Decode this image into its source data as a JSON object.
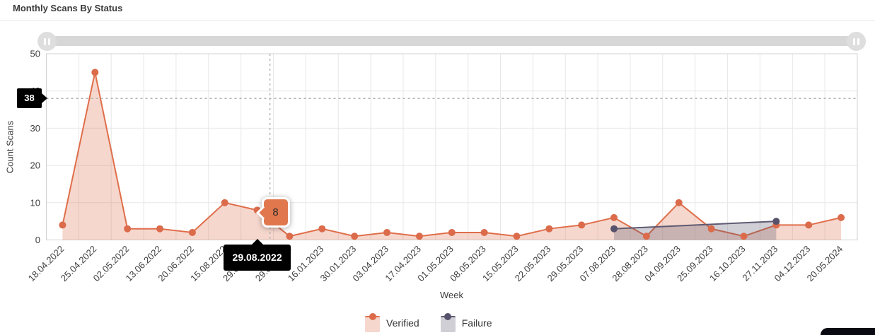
{
  "header": {
    "title": "Monthly Scans By Status"
  },
  "slider": {
    "left_handle_icon": "pause-icon",
    "right_handle_icon": "pause-icon"
  },
  "chart_data": {
    "type": "area",
    "title": "Monthly Scans By Status",
    "xlabel": "Week",
    "ylabel": "Count Scans",
    "ylim": [
      0,
      50
    ],
    "yticks": [
      0,
      10,
      20,
      30,
      40,
      50
    ],
    "grid": true,
    "legend_position": "bottom",
    "categories": [
      "18.04.2022",
      "25.04.2022",
      "02.05.2022",
      "13.06.2022",
      "20.06.2022",
      "15.08.2022",
      "29.08.2022",
      "29.09.2022",
      "16.01.2023",
      "30.01.2023",
      "03.04.2023",
      "17.04.2023",
      "01.05.2023",
      "08.05.2023",
      "15.05.2023",
      "22.05.2023",
      "29.05.2023",
      "07.08.2023",
      "28.08.2023",
      "04.09.2023",
      "25.09.2023",
      "16.10.2023",
      "27.11.2023",
      "04.12.2023",
      "20.05.2024"
    ],
    "series": [
      {
        "name": "Verified",
        "color": "#df6e4a",
        "point_color": "#db6b4a",
        "fill": "rgba(223,110,74,0.28)",
        "values": [
          4,
          45,
          3,
          3,
          2,
          10,
          8,
          1,
          3,
          1,
          2,
          1,
          2,
          2,
          1,
          3,
          4,
          6,
          1,
          10,
          3,
          1,
          4,
          4,
          6
        ]
      },
      {
        "name": "Failure",
        "color": "#5f5a72",
        "point_color": "#57526b",
        "fill": "rgba(86,81,107,0.28)",
        "values": [
          null,
          null,
          null,
          null,
          null,
          null,
          null,
          null,
          null,
          null,
          null,
          null,
          null,
          null,
          null,
          null,
          null,
          3,
          null,
          null,
          null,
          null,
          5,
          null,
          null
        ]
      }
    ],
    "crosshair": {
      "x_category": "29.08.2022",
      "y_value": 38,
      "hovered_point_value": 8
    },
    "tooltips": {
      "y_axis": "38",
      "x_axis": "29.08.2022",
      "point": "8"
    }
  },
  "colors": {
    "verified": "#df6e4a",
    "failure": "#5f5a72",
    "point_tooltip_bg": "#e0774d",
    "crosshair_tooltip_bg": "#000000",
    "slider": "#d7d7d7"
  }
}
